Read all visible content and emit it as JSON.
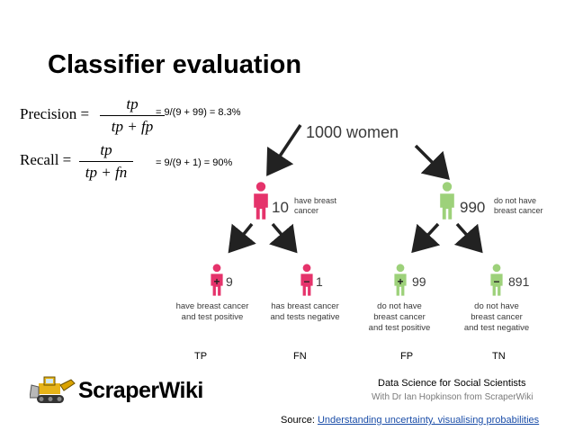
{
  "title": "Classifier evaluation",
  "precision": {
    "lhs": "Precision =",
    "numerator": "tp",
    "denominator": "tp + fp",
    "calc": "= 9/(9 + 99) = 8.3%"
  },
  "recall": {
    "lhs": "Recall =",
    "numerator": "tp",
    "denominator": "tp + fn",
    "calc": "= 9/(9 + 1) = 90%"
  },
  "tree": {
    "root": "1000 women",
    "left": {
      "count": "10",
      "label_line1": "have breast",
      "label_line2": "cancer",
      "color": "#e5336b"
    },
    "right": {
      "count": "990",
      "label_line1": "do not have",
      "label_line2": "breast cancer",
      "color": "#9dd17a"
    },
    "leaves": [
      {
        "sign": "+",
        "count": "9",
        "lines": [
          "have breast cancer",
          "and test positive"
        ],
        "color": "#e5336b"
      },
      {
        "sign": "−",
        "count": "1",
        "lines": [
          "has breast cancer",
          "and tests negative"
        ],
        "color": "#e5336b"
      },
      {
        "sign": "+",
        "count": "99",
        "lines": [
          "do not have",
          "breast cancer",
          "and test positive"
        ],
        "color": "#9dd17a"
      },
      {
        "sign": "−",
        "count": "891",
        "lines": [
          "do not have",
          "breast cancer",
          "and test negative"
        ],
        "color": "#9dd17a"
      }
    ]
  },
  "categories": [
    "TP",
    "FN",
    "FP",
    "TN"
  ],
  "logo": {
    "name": "ScraperWiki"
  },
  "credit": {
    "line1": "Data Science for Social Scientists",
    "line2": "With Dr Ian Hopkinson from ScraperWiki"
  },
  "source": {
    "prefix": "Source: ",
    "link_text": "Understanding uncertainty, visualising probabilities"
  }
}
